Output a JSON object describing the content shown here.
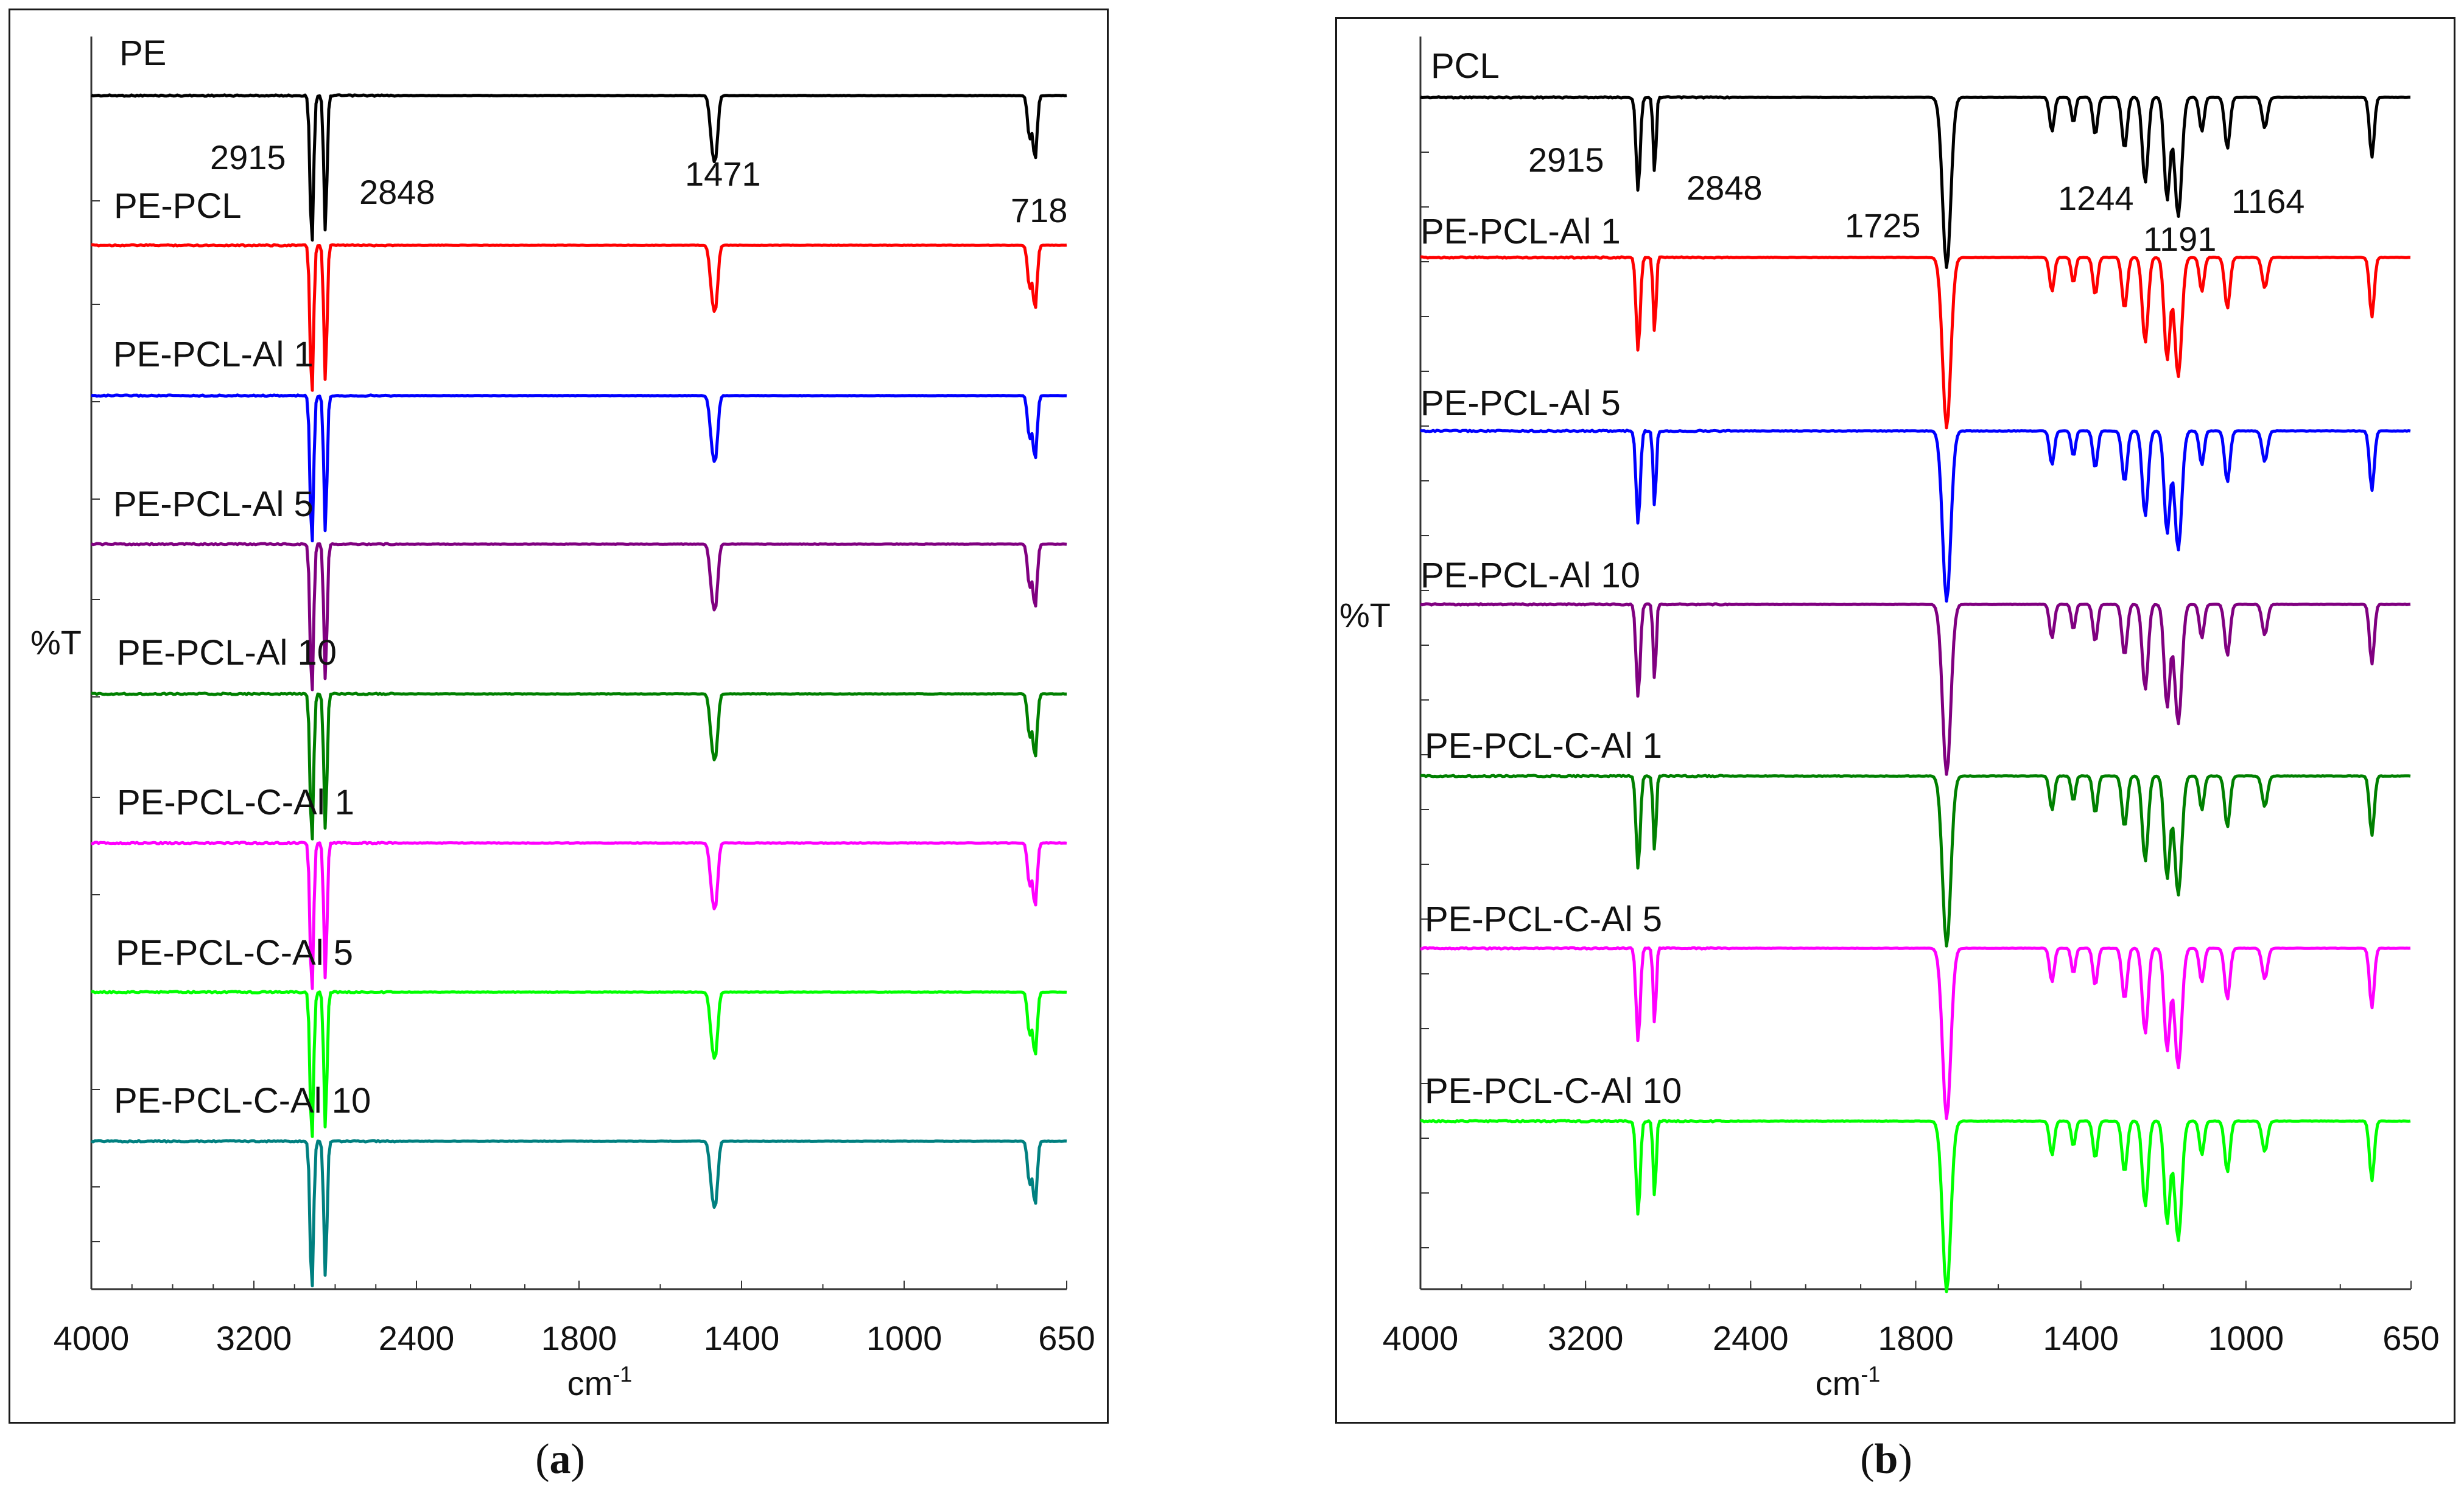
{
  "chart_data": [
    {
      "type": "line",
      "panel": "a",
      "caption_letter": "a",
      "title": "",
      "xlabel": "cm",
      "xlabel_sup": "-1",
      "ylabel": "%T",
      "xlim": [
        4000,
        650
      ],
      "xticks": [
        "4000",
        "3200",
        "2400",
        "1800",
        "1400",
        "1000",
        "650"
      ],
      "peak_labels": [
        "2915",
        "2848",
        "1471",
        "718"
      ],
      "series": [
        {
          "name": "PE",
          "color": "#000000"
        },
        {
          "name": "PE-PCL",
          "color": "#ff0000"
        },
        {
          "name": "PE-PCL-Al 1",
          "color": "#0000ff"
        },
        {
          "name": "PE-PCL-Al 5",
          "color": "#800080"
        },
        {
          "name": "PE-PCL-Al 10",
          "color": "#008000"
        },
        {
          "name": "PE-PCL-C-Al 1",
          "color": "#ff00ff"
        },
        {
          "name": "PE-PCL-C-Al 5",
          "color": "#00ff00"
        },
        {
          "name": "PE-PCL-C-Al 10",
          "color": "#008080"
        }
      ],
      "bands": [
        {
          "wn": 2915,
          "depth": 1.0,
          "width": 12
        },
        {
          "wn": 2848,
          "depth": 0.9,
          "width": 11
        },
        {
          "wn": 1471,
          "depth": 0.34,
          "width": 9
        },
        {
          "wn": 1462,
          "depth": 0.26,
          "width": 7
        },
        {
          "wn": 730,
          "depth": 0.28,
          "width": 6
        },
        {
          "wn": 718,
          "depth": 0.42,
          "width": 6
        }
      ]
    },
    {
      "type": "line",
      "panel": "b",
      "caption_letter": "b",
      "title": "",
      "xlabel": "cm",
      "xlabel_sup": "-1",
      "ylabel": "%T",
      "xlim": [
        4000,
        650
      ],
      "xticks": [
        "4000",
        "3200",
        "2400",
        "1800",
        "1400",
        "1000",
        "650"
      ],
      "peak_labels": [
        "2915",
        "2848",
        "1725",
        "1244",
        "1191",
        "1164"
      ],
      "series": [
        {
          "name": "PCL",
          "color": "#000000"
        },
        {
          "name": "PE-PCL-Al 1",
          "color": "#ff0000"
        },
        {
          "name": "PE-PCL-Al 5",
          "color": "#0000ff"
        },
        {
          "name": "PE-PCL-Al 10",
          "color": "#800080"
        },
        {
          "name": "PE-PCL-C-Al 1",
          "color": "#008000"
        },
        {
          "name": "PE-PCL-C-Al 5",
          "color": "#ff00ff"
        },
        {
          "name": "PE-PCL-C-Al 10",
          "color": "#00ff00"
        }
      ],
      "bands": [
        {
          "wn": 2945,
          "depth": 0.55,
          "width": 14
        },
        {
          "wn": 2865,
          "depth": 0.45,
          "width": 10
        },
        {
          "wn": 1725,
          "depth": 1.0,
          "width": 14
        },
        {
          "wn": 1470,
          "depth": 0.2,
          "width": 8
        },
        {
          "wn": 1418,
          "depth": 0.15,
          "width": 7
        },
        {
          "wn": 1365,
          "depth": 0.22,
          "width": 8
        },
        {
          "wn": 1294,
          "depth": 0.3,
          "width": 9
        },
        {
          "wn": 1244,
          "depth": 0.5,
          "width": 10
        },
        {
          "wn": 1191,
          "depth": 0.6,
          "width": 10
        },
        {
          "wn": 1164,
          "depth": 0.7,
          "width": 12
        },
        {
          "wn": 1107,
          "depth": 0.2,
          "width": 8
        },
        {
          "wn": 1045,
          "depth": 0.3,
          "width": 9
        },
        {
          "wn": 960,
          "depth": 0.18,
          "width": 8
        },
        {
          "wn": 733,
          "depth": 0.35,
          "width": 7
        }
      ]
    }
  ]
}
